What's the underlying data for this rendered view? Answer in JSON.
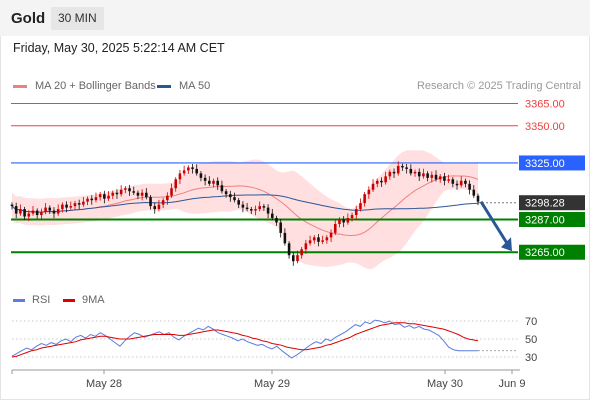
{
  "header": {
    "title": "Gold",
    "timeframe": "30 MIN"
  },
  "datetime": "Friday, May 30, 2025 5:22:14 AM CET",
  "legend": {
    "bollinger": {
      "label": "MA 20 + Bollinger Bands",
      "color": "#f08080"
    },
    "ma50": {
      "label": "MA 50",
      "color": "#2b5797"
    }
  },
  "research": "Research © 2025 Trading Central",
  "colors": {
    "resistance": "#f04040",
    "pivot": "#2962ff",
    "support": "#008000",
    "bull": "#cc0000",
    "bear": "#111111",
    "current": "#333333",
    "arrow": "#2b5797",
    "band_fill": "#ffd9d9",
    "rsi": "#5a7de0",
    "rsi_ma": "#dd0000"
  },
  "chart_data": [
    {
      "type": "candlestick",
      "instrument": "Gold",
      "timeframe": "30 MIN",
      "ylim": [
        3245,
        3370
      ],
      "x_labels": [
        "May 28",
        "May 29",
        "May 30",
        "Jun 9"
      ],
      "levels": [
        {
          "value": 3365.0,
          "label": "3365.00",
          "kind": "resistance"
        },
        {
          "value": 3350.0,
          "label": "3350.00",
          "kind": "resistance"
        },
        {
          "value": 3325.0,
          "label": "3325.00",
          "kind": "pivot"
        },
        {
          "value": 3298.28,
          "label": "3298.28",
          "kind": "current"
        },
        {
          "value": 3287.0,
          "label": "3287.00",
          "kind": "support"
        },
        {
          "value": 3265.0,
          "label": "3265.00",
          "kind": "support"
        }
      ],
      "forecast_target": 3265.0,
      "closes": [
        3296,
        3291,
        3294,
        3289,
        3291,
        3293,
        3290,
        3292,
        3295,
        3293,
        3291,
        3294,
        3297,
        3295,
        3296,
        3298,
        3297,
        3299,
        3301,
        3300,
        3302,
        3304,
        3301,
        3303,
        3305,
        3304,
        3307,
        3308,
        3306,
        3305,
        3303,
        3305,
        3302,
        3296,
        3294,
        3297,
        3300,
        3303,
        3308,
        3314,
        3318,
        3320,
        3322,
        3321,
        3318,
        3315,
        3313,
        3311,
        3313,
        3310,
        3306,
        3304,
        3302,
        3300,
        3297,
        3295,
        3294,
        3293,
        3294,
        3296,
        3295,
        3291,
        3288,
        3285,
        3278,
        3271,
        3263,
        3259,
        3263,
        3267,
        3271,
        3273,
        3275,
        3272,
        3273,
        3275,
        3278,
        3284,
        3287,
        3285,
        3288,
        3290,
        3294,
        3298,
        3304,
        3307,
        3311,
        3313,
        3312,
        3316,
        3319,
        3318,
        3323,
        3322,
        3321,
        3318,
        3319,
        3316,
        3318,
        3315,
        3317,
        3314,
        3316,
        3313,
        3314,
        3311,
        3310,
        3313,
        3311,
        3307,
        3303,
        3299
      ]
    },
    {
      "type": "line",
      "name": "RSI",
      "ylim": [
        20,
        80
      ],
      "y_ticks": [
        70,
        50,
        30
      ],
      "series": [
        {
          "name": "RSI",
          "color": "#5a7de0",
          "values": [
            31,
            34,
            37,
            40,
            38,
            42,
            45,
            43,
            46,
            44,
            48,
            50,
            47,
            52,
            54,
            51,
            55,
            53,
            57,
            54,
            50,
            46,
            42,
            48,
            53,
            57,
            55,
            52,
            54,
            56,
            58,
            55,
            57,
            52,
            49,
            53,
            56,
            59,
            62,
            60,
            64,
            61,
            57,
            55,
            53,
            51,
            48,
            50,
            47,
            45,
            43,
            44,
            41,
            39,
            42,
            37,
            33,
            29,
            32,
            36,
            40,
            44,
            47,
            45,
            50,
            48,
            52,
            55,
            58,
            62,
            66,
            64,
            69,
            67,
            71,
            70,
            68,
            70,
            66,
            67,
            63,
            65,
            62,
            64,
            61,
            60,
            57,
            54,
            48,
            41,
            38,
            37,
            37,
            37,
            37,
            37
          ]
        },
        {
          "name": "9MA",
          "color": "#dd0000",
          "values": [
            30,
            31,
            33,
            35,
            37,
            38,
            40,
            41,
            42,
            43,
            44,
            45,
            46,
            47,
            49,
            50,
            51,
            52,
            53,
            53,
            52,
            51,
            50,
            50,
            50,
            51,
            52,
            53,
            54,
            55,
            55,
            55,
            55,
            55,
            54,
            54,
            55,
            56,
            57,
            58,
            59,
            60,
            60,
            59,
            58,
            57,
            56,
            54,
            53,
            51,
            50,
            48,
            47,
            45,
            44,
            43,
            41,
            40,
            39,
            38,
            38,
            39,
            40,
            41,
            43,
            44,
            46,
            48,
            50,
            52,
            55,
            57,
            59,
            61,
            63,
            65,
            66,
            67,
            68,
            68,
            68,
            67,
            67,
            66,
            65,
            64,
            63,
            62,
            61,
            59,
            57,
            55,
            52,
            50,
            49,
            48
          ]
        }
      ]
    }
  ],
  "rsi_legend": {
    "rsi": "RSI",
    "ma": "9MA"
  }
}
